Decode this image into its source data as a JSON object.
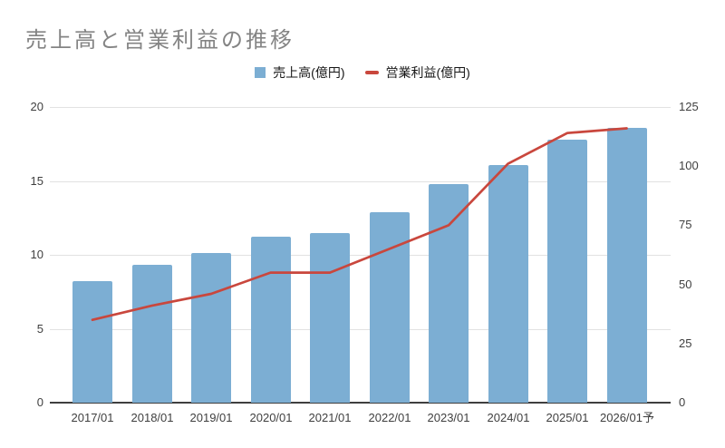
{
  "title": "売上高と営業利益の推移",
  "legend": [
    {
      "label": "売上高(億円)",
      "swatch": "square-icon",
      "color": "#7caed3"
    },
    {
      "label": "営業利益(億円)",
      "swatch": "dash-icon",
      "color": "#c9473d"
    }
  ],
  "chart_data": {
    "type": "bar+line combo",
    "title": "売上高と営業利益の推移",
    "categories": [
      "2017/01",
      "2018/01",
      "2019/01",
      "2020/01",
      "2021/01",
      "2022/01",
      "2023/01",
      "2024/01",
      "2025/01",
      "2026/01予"
    ],
    "series": [
      {
        "name": "売上高(億円)",
        "type": "bar",
        "axis": "left",
        "color": "#7caed3",
        "values": [
          8.2,
          9.3,
          10.1,
          11.2,
          11.5,
          12.9,
          14.8,
          16.1,
          17.8,
          18.6
        ]
      },
      {
        "name": "営業利益(億円)",
        "type": "line",
        "axis": "right",
        "color": "#c9473d",
        "values": [
          35,
          41,
          46,
          55,
          55,
          65,
          75,
          101,
          114,
          116
        ]
      }
    ],
    "left_axis": {
      "range": [
        0,
        20
      ],
      "ticks": [
        0,
        5,
        10,
        15,
        20
      ]
    },
    "right_axis": {
      "range": [
        0,
        125
      ],
      "ticks": [
        0,
        25,
        50,
        75,
        100,
        125
      ]
    },
    "grid": "horizontal lines at left-axis ticks",
    "legend_position": "top-center",
    "colors": {
      "bar": "#7caed3",
      "line": "#c9473d",
      "gridline": "#e2e2e2",
      "axis_line": "#3f3f3f",
      "tick_text": "#3f3f3f",
      "title_text": "#848484"
    }
  }
}
